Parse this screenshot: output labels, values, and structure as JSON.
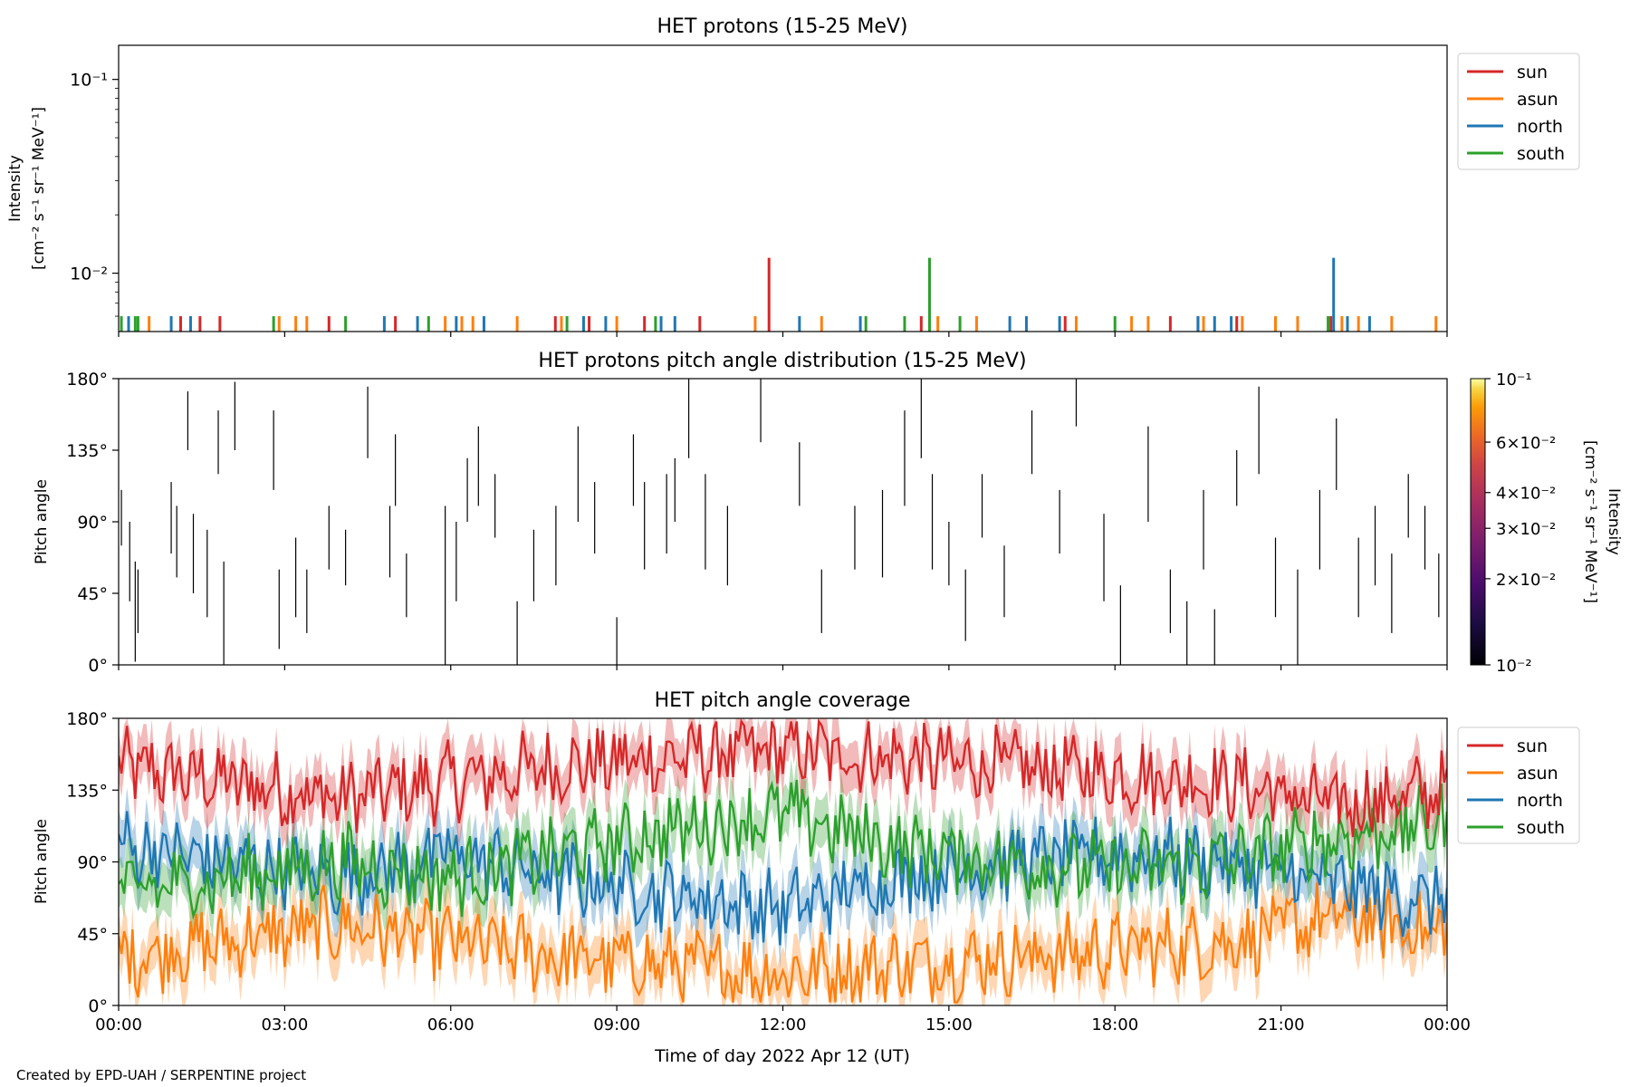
{
  "colors": {
    "sun": "#d62728",
    "asun": "#ff7f0e",
    "north": "#1f77b4",
    "south": "#2ca02c"
  },
  "credit": "Created by EPD-UAH / SERPENTINE project",
  "chart_data": [
    {
      "type": "line",
      "title": "HET protons (15-25 MeV)",
      "ylabel_line1": "Intensity",
      "ylabel_line2": "[cm⁻² s⁻¹ sr⁻¹ MeV⁻¹]",
      "yscale": "log",
      "ylim": [
        0.005,
        0.15
      ],
      "ytick_labels": [
        "10⁻¹",
        "10⁻²"
      ],
      "ytick_values": [
        0.1,
        0.01
      ],
      "legend": "top-right",
      "series": [
        {
          "name": "sun",
          "spikes": [
            [
              1.12,
              0.006
            ],
            [
              1.47,
              0.006
            ],
            [
              1.83,
              0.006
            ],
            [
              3.8,
              0.006
            ],
            [
              5.0,
              0.006
            ],
            [
              7.89,
              0.006
            ],
            [
              8.5,
              0.006
            ],
            [
              9.5,
              0.006
            ],
            [
              10.5,
              0.006
            ],
            [
              11.75,
              0.012
            ],
            [
              14.5,
              0.006
            ],
            [
              17.1,
              0.006
            ],
            [
              19.0,
              0.006
            ],
            [
              19.5,
              0.006
            ],
            [
              20.2,
              0.006
            ],
            [
              21.9,
              0.006
            ]
          ]
        },
        {
          "name": "asun",
          "spikes": [
            [
              0.55,
              0.006
            ],
            [
              2.9,
              0.006
            ],
            [
              3.2,
              0.006
            ],
            [
              3.4,
              0.006
            ],
            [
              5.9,
              0.006
            ],
            [
              6.2,
              0.006
            ],
            [
              6.4,
              0.006
            ],
            [
              7.2,
              0.006
            ],
            [
              8.0,
              0.006
            ],
            [
              9.0,
              0.006
            ],
            [
              11.5,
              0.006
            ],
            [
              12.7,
              0.006
            ],
            [
              14.8,
              0.006
            ],
            [
              15.5,
              0.006
            ],
            [
              17.3,
              0.006
            ],
            [
              18.3,
              0.006
            ],
            [
              18.6,
              0.006
            ],
            [
              19.6,
              0.006
            ],
            [
              20.3,
              0.006
            ],
            [
              20.9,
              0.006
            ],
            [
              21.3,
              0.006
            ],
            [
              22.1,
              0.006
            ],
            [
              22.4,
              0.006
            ],
            [
              23.0,
              0.006
            ],
            [
              23.8,
              0.006
            ]
          ]
        },
        {
          "name": "north",
          "spikes": [
            [
              0.18,
              0.006
            ],
            [
              0.95,
              0.006
            ],
            [
              1.3,
              0.006
            ],
            [
              4.8,
              0.006
            ],
            [
              5.4,
              0.006
            ],
            [
              6.1,
              0.006
            ],
            [
              6.6,
              0.006
            ],
            [
              8.4,
              0.006
            ],
            [
              8.8,
              0.006
            ],
            [
              9.8,
              0.006
            ],
            [
              10.05,
              0.006
            ],
            [
              12.3,
              0.006
            ],
            [
              13.4,
              0.006
            ],
            [
              16.1,
              0.006
            ],
            [
              16.4,
              0.006
            ],
            [
              17.0,
              0.006
            ],
            [
              19.5,
              0.006
            ],
            [
              19.8,
              0.006
            ],
            [
              20.1,
              0.006
            ],
            [
              21.95,
              0.012
            ],
            [
              22.2,
              0.006
            ],
            [
              22.6,
              0.006
            ]
          ]
        },
        {
          "name": "south",
          "spikes": [
            [
              0.05,
              0.006
            ],
            [
              0.3,
              0.006
            ],
            [
              0.35,
              0.006
            ],
            [
              2.8,
              0.006
            ],
            [
              4.1,
              0.006
            ],
            [
              5.6,
              0.006
            ],
            [
              8.1,
              0.006
            ],
            [
              9.7,
              0.006
            ],
            [
              13.5,
              0.006
            ],
            [
              14.2,
              0.006
            ],
            [
              14.65,
              0.012
            ],
            [
              15.2,
              0.006
            ],
            [
              18.0,
              0.006
            ],
            [
              21.85,
              0.006
            ]
          ]
        }
      ]
    },
    {
      "type": "heatmap",
      "title": "HET protons pitch angle distribution (15-25 MeV)",
      "ylabel": "Pitch angle",
      "ylim": [
        0,
        180
      ],
      "ytick_labels": [
        "0°",
        "45°",
        "90°",
        "135°",
        "180°"
      ],
      "ytick_values": [
        0,
        45,
        90,
        135,
        180
      ],
      "colorbar_label_line1": "Intensity",
      "colorbar_label_line2": "[cm⁻² s⁻¹ sr⁻¹ MeV⁻¹]",
      "colorbar_range": [
        0.01,
        0.1
      ],
      "colorbar_tick_labels": [
        "10⁻¹",
        "6×10⁻²",
        "4×10⁻²",
        "3×10⁻²",
        "2×10⁻²",
        "10⁻²"
      ],
      "colorbar_tick_values": [
        0.1,
        0.06,
        0.04,
        0.03,
        0.02,
        0.01
      ],
      "segments": [
        [
          0.05,
          75,
          110
        ],
        [
          0.2,
          40,
          90
        ],
        [
          0.3,
          2,
          65
        ],
        [
          0.35,
          20,
          60
        ],
        [
          0.95,
          70,
          115
        ],
        [
          1.05,
          55,
          100
        ],
        [
          1.25,
          135,
          172
        ],
        [
          1.35,
          45,
          95
        ],
        [
          1.6,
          30,
          85
        ],
        [
          1.8,
          120,
          160
        ],
        [
          1.9,
          0,
          65
        ],
        [
          2.1,
          135,
          178
        ],
        [
          2.8,
          110,
          160
        ],
        [
          2.9,
          10,
          60
        ],
        [
          3.2,
          30,
          80
        ],
        [
          3.4,
          20,
          60
        ],
        [
          3.8,
          60,
          100
        ],
        [
          4.1,
          50,
          85
        ],
        [
          4.5,
          130,
          175
        ],
        [
          4.9,
          55,
          100
        ],
        [
          5.0,
          100,
          145
        ],
        [
          5.2,
          30,
          70
        ],
        [
          5.9,
          0,
          100
        ],
        [
          6.1,
          40,
          90
        ],
        [
          6.3,
          90,
          130
        ],
        [
          6.5,
          100,
          150
        ],
        [
          6.8,
          80,
          120
        ],
        [
          7.2,
          0,
          40
        ],
        [
          7.5,
          40,
          85
        ],
        [
          7.9,
          50,
          100
        ],
        [
          8.3,
          90,
          150
        ],
        [
          8.6,
          70,
          115
        ],
        [
          9.0,
          0,
          30
        ],
        [
          9.3,
          100,
          145
        ],
        [
          9.5,
          60,
          115
        ],
        [
          9.9,
          70,
          120
        ],
        [
          10.05,
          90,
          130
        ],
        [
          10.3,
          130,
          180
        ],
        [
          10.6,
          60,
          120
        ],
        [
          11.0,
          50,
          100
        ],
        [
          11.6,
          140,
          180
        ],
        [
          12.3,
          100,
          140
        ],
        [
          12.7,
          20,
          60
        ],
        [
          13.3,
          60,
          100
        ],
        [
          13.8,
          55,
          110
        ],
        [
          14.2,
          100,
          160
        ],
        [
          14.5,
          130,
          180
        ],
        [
          14.7,
          60,
          120
        ],
        [
          15.0,
          50,
          90
        ],
        [
          15.3,
          15,
          60
        ],
        [
          15.6,
          80,
          120
        ],
        [
          16.0,
          30,
          75
        ],
        [
          16.5,
          120,
          160
        ],
        [
          17.0,
          70,
          110
        ],
        [
          17.3,
          150,
          180
        ],
        [
          17.8,
          40,
          95
        ],
        [
          18.1,
          0,
          50
        ],
        [
          18.6,
          90,
          150
        ],
        [
          19.0,
          20,
          60
        ],
        [
          19.3,
          0,
          40
        ],
        [
          19.6,
          60,
          110
        ],
        [
          19.8,
          0,
          35
        ],
        [
          20.2,
          100,
          135
        ],
        [
          20.6,
          120,
          175
        ],
        [
          20.9,
          30,
          80
        ],
        [
          21.3,
          0,
          60
        ],
        [
          21.7,
          60,
          110
        ],
        [
          22.0,
          110,
          155
        ],
        [
          22.4,
          30,
          80
        ],
        [
          22.7,
          50,
          100
        ],
        [
          23.0,
          20,
          70
        ],
        [
          23.3,
          80,
          120
        ],
        [
          23.6,
          60,
          100
        ],
        [
          23.85,
          30,
          70
        ]
      ]
    },
    {
      "type": "area",
      "title": "HET pitch angle coverage",
      "ylabel": "Pitch angle",
      "xlabel": "Time of day 2022 Apr 12 (UT)",
      "ylim": [
        0,
        180
      ],
      "ytick_labels": [
        "0°",
        "45°",
        "90°",
        "135°",
        "180°"
      ],
      "ytick_values": [
        0,
        45,
        90,
        135,
        180
      ],
      "xlim": [
        0,
        24
      ],
      "xtick_labels": [
        "00:00",
        "03:00",
        "06:00",
        "09:00",
        "12:00",
        "15:00",
        "18:00",
        "21:00",
        "00:00"
      ],
      "xtick_values": [
        0,
        3,
        6,
        9,
        12,
        15,
        18,
        21,
        24
      ],
      "legend": "top-right",
      "band_width": 15,
      "series": [
        {
          "name": "sun",
          "x": [
            0,
            2,
            4,
            6,
            8,
            10,
            12,
            14,
            16,
            18,
            20,
            22,
            24
          ],
          "values": [
            150,
            140,
            130,
            140,
            150,
            155,
            160,
            155,
            150,
            145,
            140,
            125,
            135
          ]
        },
        {
          "name": "asun",
          "x": [
            0,
            2,
            4,
            6,
            8,
            10,
            12,
            14,
            16,
            18,
            20,
            22,
            24
          ],
          "values": [
            30,
            40,
            50,
            40,
            30,
            25,
            20,
            25,
            30,
            35,
            40,
            55,
            45
          ]
        },
        {
          "name": "north",
          "x": [
            0,
            2,
            4,
            6,
            8,
            10,
            12,
            14,
            16,
            18,
            20,
            22,
            24
          ],
          "values": [
            100,
            90,
            80,
            95,
            80,
            70,
            60,
            80,
            90,
            95,
            90,
            75,
            65
          ]
        },
        {
          "name": "south",
          "x": [
            0,
            2,
            4,
            6,
            8,
            10,
            12,
            14,
            16,
            18,
            20,
            22,
            24
          ],
          "values": [
            70,
            80,
            90,
            80,
            95,
            110,
            120,
            100,
            90,
            85,
            90,
            105,
            115
          ]
        }
      ]
    }
  ]
}
